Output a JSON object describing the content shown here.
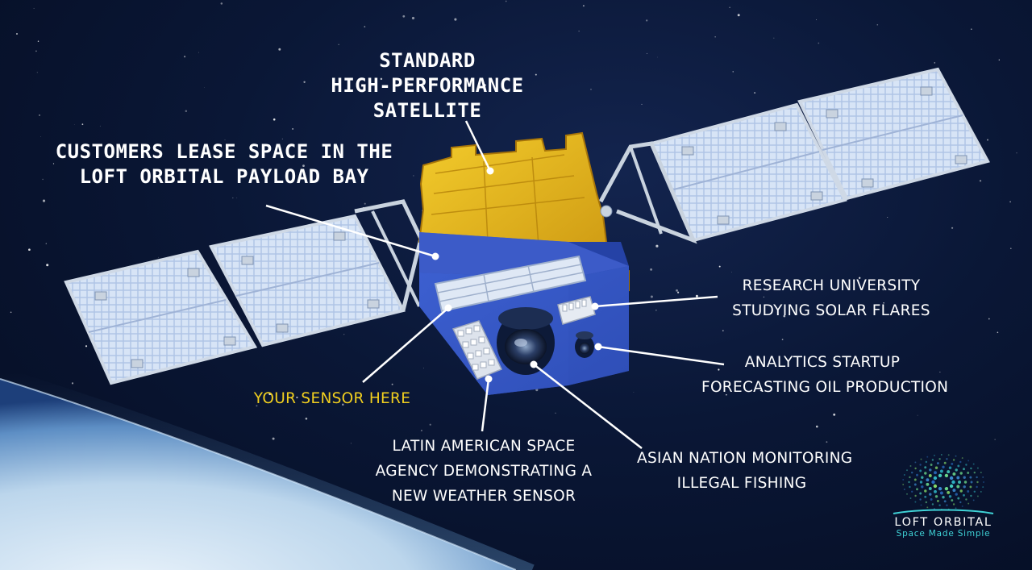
{
  "labels": {
    "satellite": [
      "STANDARD",
      "HIGH-PERFORMANCE",
      "SATELLITE"
    ],
    "payload_bay": [
      "CUSTOMERS LEASE SPACE IN THE",
      "LOFT ORBITAL PAYLOAD BAY"
    ],
    "research": [
      "RESEARCH UNIVERSITY",
      "STUDYING SOLAR FLARES"
    ],
    "analytics": [
      "ANALYTICS STARTUP",
      "FORECASTING OIL PRODUCTION"
    ],
    "your_sensor": "YOUR SENSOR HERE",
    "latin_american": [
      "LATIN AMERICAN SPACE",
      "AGENCY DEMONSTRATING A",
      "NEW WEATHER SENSOR"
    ],
    "asian_nation": [
      "ASIAN NATION MONITORING",
      "ILLEGAL FISHING"
    ]
  },
  "brand": {
    "name": "LOFT ORBITAL",
    "tagline": "Space Made Simple"
  },
  "colors": {
    "space": "#07122b",
    "label_text": "#ffffff",
    "highlight": "#f1cf1f",
    "bus_blue": "#3755c4",
    "foil_gold": "#e3b21a",
    "brand_accent": "#3fd2d6"
  },
  "icons": [
    "satellite-illustration",
    "earth-horizon",
    "loft-orbital-logo-icon"
  ]
}
